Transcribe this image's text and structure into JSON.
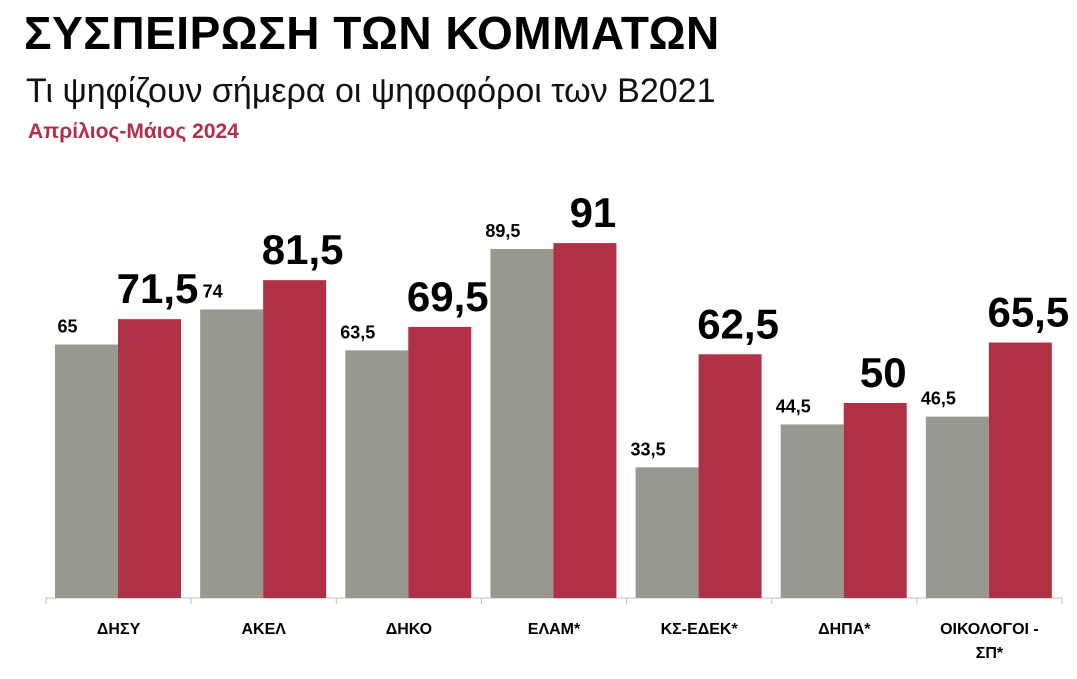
{
  "title": "ΣΥΣΠΕΙΡΩΣΗ ΤΩΝ ΚΟΜΜΑΤΩΝ",
  "subtitle": "Τι ψηφίζουν σήμερα οι ψηφοφόροι των Β2021",
  "period": "Απρίλιος-Μάιος 2024",
  "colors": {
    "series_1": "#989891",
    "series_2": "#b03146",
    "period_text": "#b0304a"
  },
  "chart_data": {
    "type": "bar",
    "categories": [
      "ΔΗΣΥ",
      "ΑΚΕΛ",
      "ΔΗΚΟ",
      "ΕΛΑΜ*",
      "ΚΣ-ΕΔΕΚ*",
      "ΔΗΠΑ*",
      "ΟΙΚΟΛΟΓΟΙ - ΣΠ*"
    ],
    "series": [
      {
        "values": [
          65,
          74,
          63.5,
          89.5,
          33.5,
          44.5,
          46.5
        ],
        "labels": [
          "65",
          "74",
          "63,5",
          "89,5",
          "33,5",
          "44,5",
          "46,5"
        ]
      },
      {
        "values": [
          71.5,
          81.5,
          69.5,
          91,
          62.5,
          50,
          65.5
        ],
        "labels": [
          "71,5",
          "81,5",
          "69,5",
          "91",
          "62,5",
          "50",
          "65,5"
        ]
      }
    ],
    "ylim": [
      0,
      100
    ],
    "grid": false,
    "legend": "none"
  }
}
